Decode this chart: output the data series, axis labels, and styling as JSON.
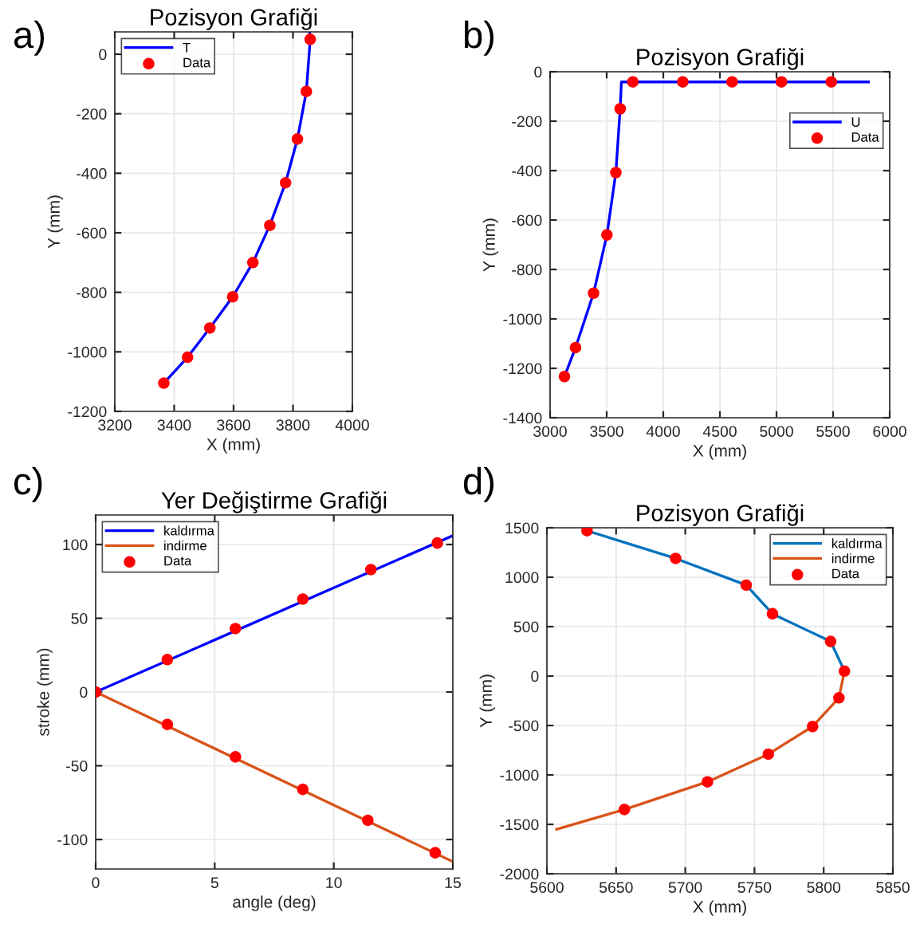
{
  "chart_data": [
    {
      "type": "line",
      "title": "Pozisyon Grafiği",
      "xlabel": "X (mm)",
      "ylabel": "Y (mm)",
      "annotations": [
        "a)"
      ],
      "xlim": [
        3200,
        4000
      ],
      "ylim": [
        -1200,
        75
      ],
      "xticks": [
        3200,
        3400,
        3600,
        3800,
        4000
      ],
      "yticks": [
        -1200,
        -1000,
        -800,
        -600,
        -400,
        -200,
        0
      ],
      "grid": true,
      "legend": "top left",
      "series": [
        {
          "name": "T",
          "color": "#0000ff",
          "x": [
            3365,
            3445,
            3520,
            3597,
            3665,
            3722,
            3775,
            3815,
            3845,
            3858,
            3856
          ],
          "values": [
            -1105,
            -1018,
            -920,
            -815,
            -700,
            -575,
            -432,
            -285,
            -125,
            50,
            75
          ]
        },
        {
          "name": "Data",
          "type": "scatter",
          "marker": "circle",
          "color": "#ff0000",
          "x": [
            3365,
            3445,
            3520,
            3597,
            3665,
            3722,
            3775,
            3815,
            3845,
            3858
          ],
          "values": [
            -1105,
            -1018,
            -920,
            -815,
            -700,
            -575,
            -432,
            -285,
            -125,
            50
          ]
        }
      ]
    },
    {
      "type": "line",
      "title": "Pozisyon Grafiği",
      "xlabel": "X (mm)",
      "ylabel": "Y (mm)",
      "annotations": [
        "b)"
      ],
      "xlim": [
        3000,
        6000
      ],
      "ylim": [
        -1400,
        0
      ],
      "xticks": [
        3000,
        3500,
        4000,
        4500,
        5000,
        5500,
        6000
      ],
      "yticks": [
        -1400,
        -1200,
        -1000,
        -800,
        -600,
        -400,
        -200,
        0
      ],
      "grid": true,
      "legend": "top right",
      "series": [
        {
          "name": "U",
          "color": "#0000ff",
          "x": [
            3127,
            3225,
            3384,
            3502,
            3581,
            3619,
            3630,
            5812
          ],
          "values": [
            -1233,
            -1116,
            -896,
            -660,
            -408,
            -150,
            -41,
            -41
          ]
        },
        {
          "name": "Data",
          "type": "scatter",
          "marker": "circle",
          "color": "#ff0000",
          "x": [
            3127,
            3225,
            3384,
            3502,
            3581,
            3619,
            3731,
            4172,
            4608,
            5044,
            5484
          ],
          "values": [
            -1233,
            -1116,
            -896,
            -660,
            -408,
            -150,
            -41,
            -41,
            -41,
            -41,
            -41
          ]
        }
      ]
    },
    {
      "type": "line",
      "title": "Yer Değiştirme Grafiği",
      "xlabel": "angle (deg)",
      "ylabel": "stroke (mm)",
      "annotations": [
        "c)"
      ],
      "xlim": [
        0,
        15
      ],
      "ylim": [
        -120,
        120
      ],
      "xticks": [
        0,
        5,
        10,
        15
      ],
      "yticks": [
        -100,
        -50,
        0,
        50,
        100
      ],
      "grid": true,
      "legend": "top left",
      "series": [
        {
          "name": "kaldırma",
          "color": "#0000ff",
          "x": [
            0,
            15
          ],
          "values": [
            0,
            106
          ]
        },
        {
          "name": "indirme",
          "color": "#d95319",
          "x": [
            0,
            15
          ],
          "values": [
            0,
            -115
          ]
        },
        {
          "name": "Data",
          "type": "scatter",
          "marker": "circle",
          "color": "#ff0000",
          "x": [
            0,
            3.01,
            5.87,
            8.7,
            11.56,
            14.35,
            3.01,
            5.87,
            8.7,
            11.43,
            14.26
          ],
          "values": [
            0,
            22,
            43,
            63,
            83,
            101,
            -22,
            -44,
            -66,
            -87,
            -109
          ]
        }
      ]
    },
    {
      "type": "line",
      "title": "Pozisyon Grafiği",
      "xlabel": "X (mm)",
      "ylabel": "Y (mm)",
      "annotations": [
        "d)"
      ],
      "xlim": [
        5600,
        5850
      ],
      "ylim": [
        -2000,
        1500
      ],
      "xticks": [
        5600,
        5650,
        5700,
        5750,
        5800,
        5850
      ],
      "yticks": [
        -2000,
        -1500,
        -1000,
        -500,
        0,
        500,
        1000,
        1500
      ],
      "grid": true,
      "legend": "top right",
      "series": [
        {
          "name": "kaldırma",
          "color": "#0072bd",
          "x": [
            5629,
            5693,
            5744,
            5763,
            5805,
            5815
          ],
          "values": [
            1470,
            1190,
            920,
            630,
            350,
            50
          ]
        },
        {
          "name": "indirme",
          "color": "#d95319",
          "x": [
            5815,
            5811,
            5792,
            5760,
            5716,
            5656,
            5607
          ],
          "values": [
            50,
            -220,
            -510,
            -790,
            -1070,
            -1350,
            -1550
          ]
        },
        {
          "name": "Data",
          "type": "scatter",
          "marker": "circle",
          "color": "#ff0000",
          "x": [
            5629,
            5693,
            5744,
            5763,
            5805,
            5815,
            5811,
            5792,
            5760,
            5716,
            5656
          ],
          "values": [
            1470,
            1190,
            920,
            630,
            350,
            50,
            -220,
            -510,
            -790,
            -1070,
            -1350
          ]
        }
      ]
    }
  ]
}
